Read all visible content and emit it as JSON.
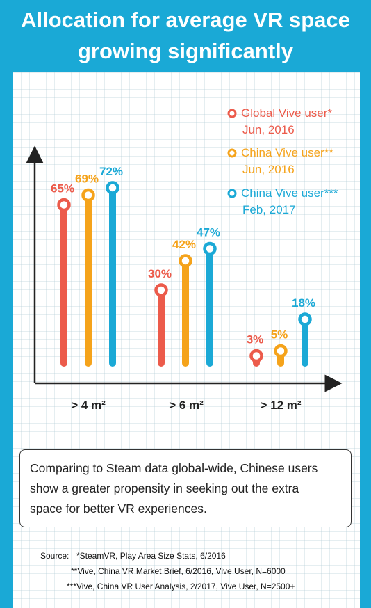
{
  "header": {
    "title_line1": "Allocation for average VR space",
    "title_line2": "growing significantly"
  },
  "chart_data": {
    "type": "bar",
    "categories": [
      "> 4 m²",
      "> 6 m²",
      "> 12 m²"
    ],
    "series": [
      {
        "name": "Global Vive user*",
        "date": "Jun, 2016",
        "color": "#ec5b4b",
        "values": [
          65,
          30,
          3
        ]
      },
      {
        "name": "China Vive user**",
        "date": "Jun, 2016",
        "color": "#f5a31b",
        "values": [
          69,
          42,
          5
        ]
      },
      {
        "name": "China Vive user***",
        "date": "Feb, 2017",
        "color": "#1ba9d6",
        "values": [
          72,
          47,
          18
        ]
      }
    ],
    "unit": "%",
    "legend_position": "top-right",
    "grid": false
  },
  "note": {
    "line1": "Comparing to Steam data global-wide, Chinese users",
    "line2": "show a greater propensity in seeking out the extra",
    "line3": "space for better VR experiences."
  },
  "sources": {
    "label": "Source:",
    "line1": "*SteamVR, Play Area Size Stats, 6/2016",
    "line2": "**Vive, China VR Market Brief, 6/2016, Vive User, N=6000",
    "line3": "***Vive, China VR User Analysis, 2/2017, Vive User, N=2500+"
  }
}
